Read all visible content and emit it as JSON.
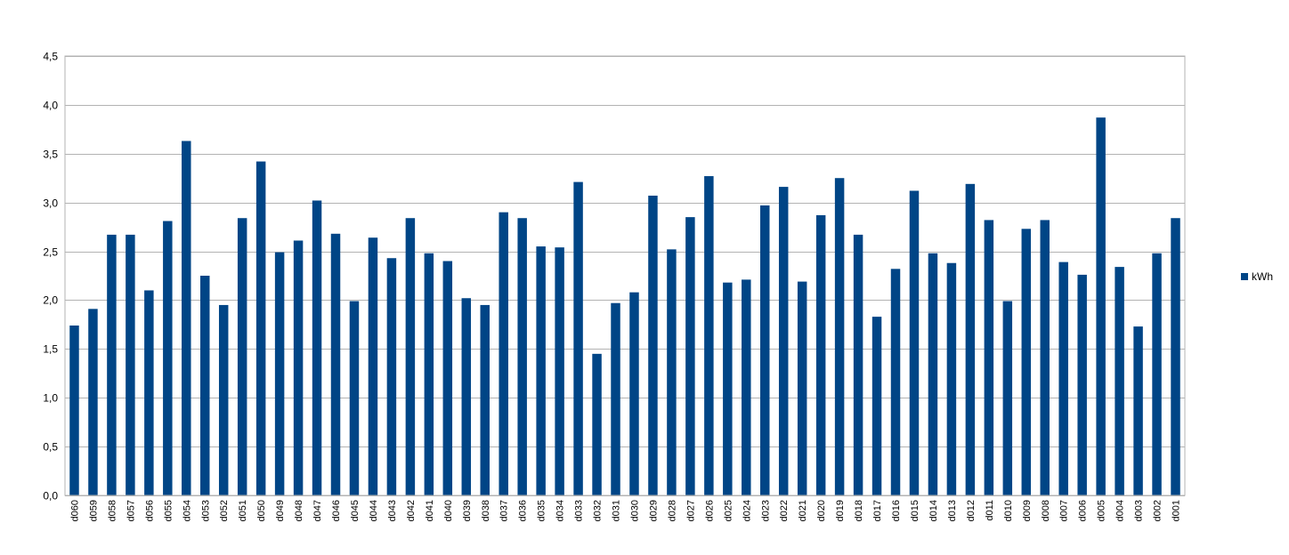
{
  "chart_data": {
    "type": "bar",
    "categories": [
      "d060",
      "d059",
      "d058",
      "d057",
      "d056",
      "d055",
      "d054",
      "d053",
      "d052",
      "d051",
      "d050",
      "d049",
      "d048",
      "d047",
      "d046",
      "d045",
      "d044",
      "d043",
      "d042",
      "d041",
      "d040",
      "d039",
      "d038",
      "d037",
      "d036",
      "d035",
      "d034",
      "d033",
      "d032",
      "d031",
      "d030",
      "d029",
      "d028",
      "d027",
      "d026",
      "d025",
      "d024",
      "d023",
      "d022",
      "d021",
      "d020",
      "d019",
      "d018",
      "d017",
      "d016",
      "d015",
      "d014",
      "d013",
      "d012",
      "d011",
      "d010",
      "d009",
      "d008",
      "d007",
      "d006",
      "d005",
      "d004",
      "d003",
      "d002",
      "d001"
    ],
    "series": [
      {
        "name": "kWh",
        "values": [
          1.74,
          1.91,
          2.67,
          2.67,
          2.1,
          2.81,
          3.63,
          2.25,
          1.95,
          2.84,
          3.42,
          2.49,
          2.61,
          3.02,
          2.68,
          1.99,
          2.64,
          2.43,
          2.84,
          2.48,
          2.4,
          2.02,
          1.95,
          2.9,
          2.84,
          2.55,
          2.54,
          3.21,
          1.45,
          1.97,
          2.08,
          3.07,
          2.52,
          2.85,
          3.27,
          2.18,
          2.21,
          2.97,
          3.16,
          2.19,
          2.87,
          3.25,
          2.67,
          1.83,
          2.32,
          3.12,
          2.48,
          2.38,
          3.19,
          2.82,
          1.99,
          2.73,
          2.82,
          2.39,
          2.26,
          3.87,
          2.34,
          1.73,
          2.48,
          2.84
        ]
      }
    ],
    "y_ticks": [
      "0,0",
      "0,5",
      "1,0",
      "1,5",
      "2,0",
      "2,5",
      "3,0",
      "3,5",
      "4,0",
      "4,5"
    ],
    "ylim": [
      0,
      4.5
    ],
    "grid": true,
    "legend": "right",
    "color": "#004586",
    "title": "",
    "xlabel": "",
    "ylabel": ""
  }
}
